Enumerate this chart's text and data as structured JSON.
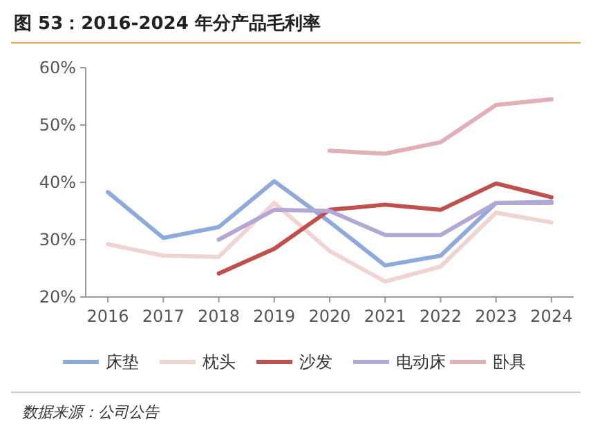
{
  "chart_data": {
    "type": "line",
    "title": "图 53：2016-2024 年分产品毛利率",
    "annotations": [
      "数据来源：公司公告"
    ],
    "x": [
      2016,
      2017,
      2018,
      2019,
      2020,
      2021,
      2022,
      2023,
      2024
    ],
    "xlim": [
      2015.6,
      2024.4
    ],
    "xticks": [
      2016,
      2017,
      2018,
      2019,
      2020,
      2021,
      2022,
      2023,
      2024
    ],
    "ylim": [
      20,
      60
    ],
    "yticks": [
      {
        "value": 20,
        "label": "20%"
      },
      {
        "value": 30,
        "label": "30%"
      },
      {
        "value": 40,
        "label": "40%"
      },
      {
        "value": 50,
        "label": "50%"
      },
      {
        "value": 60,
        "label": "60%"
      }
    ],
    "grid": false,
    "legend": "bottom",
    "line_style": "solid",
    "marker": "none",
    "series": [
      {
        "name": "床垫",
        "color": "#8eaadb",
        "values": [
          38.3,
          30.3,
          32.2,
          40.2,
          33.1,
          25.5,
          27.2,
          36.4,
          36.6
        ]
      },
      {
        "name": "枕头",
        "color": "#f0d4d4",
        "values": [
          29.2,
          27.2,
          27,
          36.4,
          28,
          22.7,
          25.3,
          34.7,
          33
        ]
      },
      {
        "name": "沙发",
        "color": "#c0504d",
        "values": [
          null,
          null,
          24.1,
          28.4,
          35.2,
          36.1,
          35.2,
          39.8,
          37.4
        ]
      },
      {
        "name": "电动床",
        "color": "#b4a7d6",
        "values": [
          null,
          null,
          30,
          35.2,
          35,
          30.8,
          30.8,
          36.4,
          36.4
        ]
      },
      {
        "name": "卧具",
        "color": "#dfb0b8",
        "values": [
          null,
          null,
          null,
          null,
          45.5,
          45,
          47,
          53.5,
          54.5
        ]
      }
    ]
  }
}
